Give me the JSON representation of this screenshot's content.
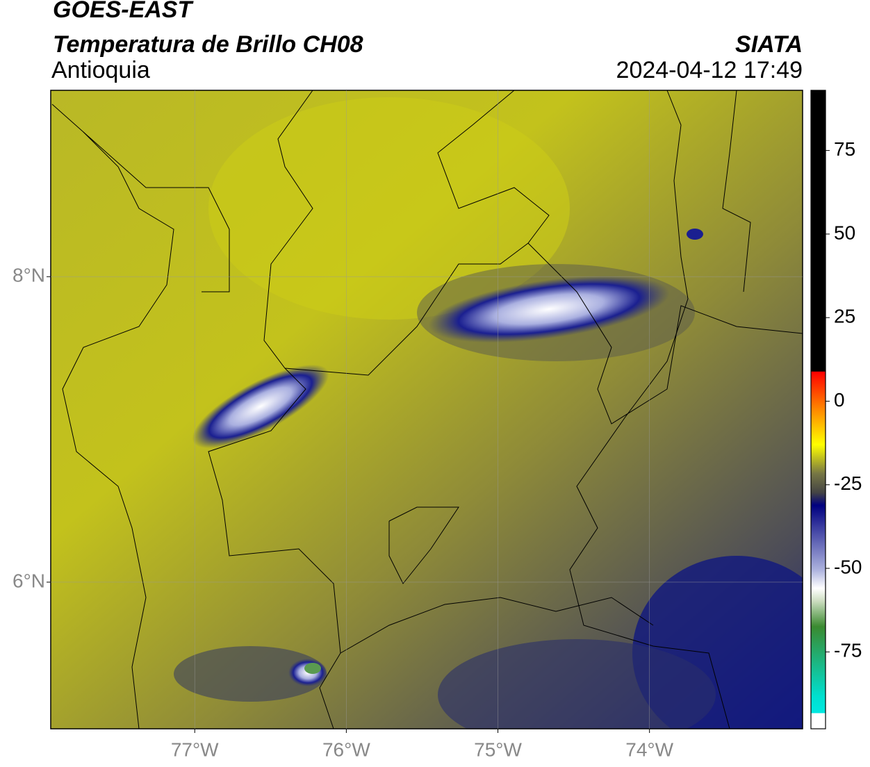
{
  "header": {
    "title": "GOES-EAST",
    "subtitle": "Temperatura de Brillo CH08",
    "region": "Antioquia",
    "source": "SIATA",
    "timestamp": "2024-04-12 17:49"
  },
  "map": {
    "xlim": [
      -77.95,
      -72.99
    ],
    "ylim": [
      5.04,
      9.22
    ],
    "xticks": [
      {
        "value": -77,
        "label": "77°W"
      },
      {
        "value": -76,
        "label": "76°W"
      },
      {
        "value": -75,
        "label": "75°W"
      },
      {
        "value": -74,
        "label": "74°W"
      }
    ],
    "yticks": [
      {
        "value": 8,
        "label": "8°N"
      },
      {
        "value": 6,
        "label": "6°N"
      }
    ],
    "grid": true
  },
  "colorbar": {
    "lim": [
      -98,
      93
    ],
    "ticks": [
      75,
      50,
      25,
      0,
      -25,
      -50,
      -75
    ]
  }
}
